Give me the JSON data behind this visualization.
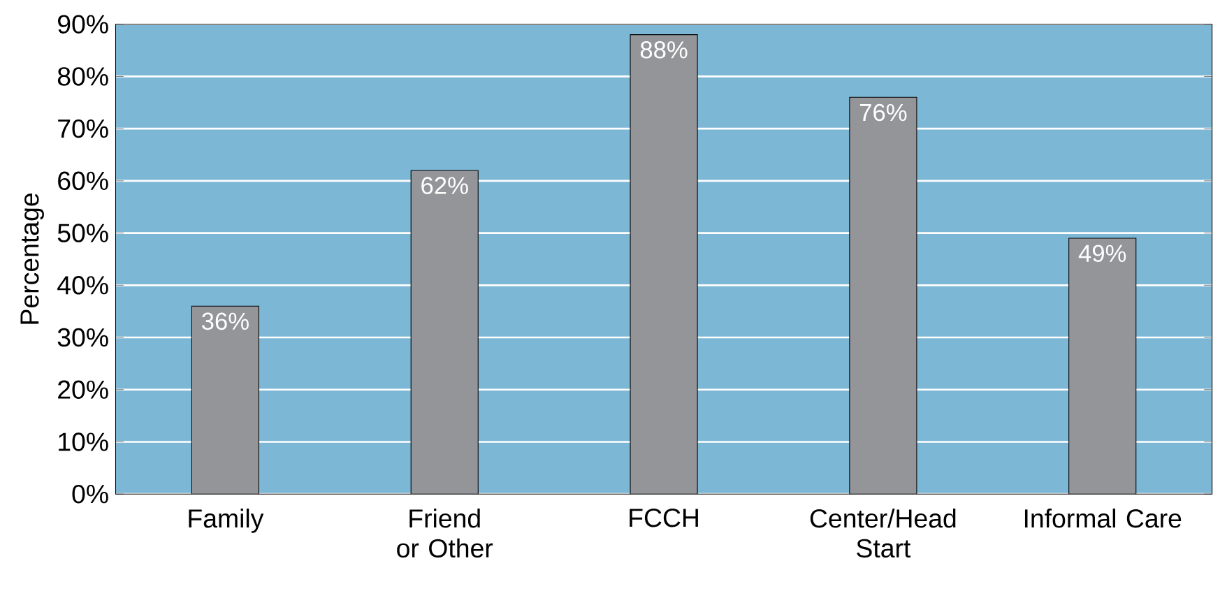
{
  "chart_data": {
    "type": "bar",
    "ylabel": "Percentage",
    "categories": [
      "Family",
      "Friend or Other",
      "FCCH",
      "Center/Head Start",
      "Informal Care"
    ],
    "values": [
      36,
      62,
      88,
      76,
      49
    ],
    "value_labels": [
      "36%",
      "62%",
      "88%",
      "76%",
      "49%"
    ],
    "color": "#939598",
    "ylim": [
      0,
      90
    ],
    "yticks": [
      {
        "value": 0,
        "label": "0%"
      },
      {
        "value": 10,
        "label": "10%"
      },
      {
        "value": 20,
        "label": "20%"
      },
      {
        "value": 30,
        "label": "30%"
      },
      {
        "value": 40,
        "label": "40%"
      },
      {
        "value": 50,
        "label": "50%"
      },
      {
        "value": 60,
        "label": "60%"
      },
      {
        "value": 70,
        "label": "70%"
      },
      {
        "value": 80,
        "label": "80%"
      },
      {
        "value": 90,
        "label": "90%"
      }
    ],
    "grid": "y"
  }
}
